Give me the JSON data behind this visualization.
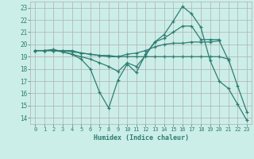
{
  "xlabel": "Humidex (Indice chaleur)",
  "background_color": "#cceee8",
  "grid_color": "#b0b0b0",
  "line_color": "#2e7d72",
  "xlim": [
    -0.5,
    23.5
  ],
  "ylim": [
    13.5,
    23.5
  ],
  "xticks": [
    0,
    1,
    2,
    3,
    4,
    5,
    6,
    7,
    8,
    9,
    10,
    11,
    12,
    13,
    14,
    15,
    16,
    17,
    18,
    19,
    20,
    21,
    22,
    23
  ],
  "yticks": [
    14,
    15,
    16,
    17,
    18,
    19,
    20,
    21,
    22,
    23
  ],
  "lines": [
    {
      "x": [
        0,
        1,
        2,
        3,
        4,
        5,
        6,
        7,
        8,
        9,
        10,
        11,
        12,
        13,
        14,
        15,
        16,
        17,
        18,
        19,
        20
      ],
      "y": [
        19.5,
        19.5,
        19.6,
        19.4,
        19.2,
        18.8,
        18.0,
        16.1,
        14.8,
        17.1,
        18.4,
        17.7,
        19.2,
        20.2,
        20.5,
        21.0,
        21.5,
        21.5,
        20.4,
        20.4,
        20.4
      ]
    },
    {
      "x": [
        0,
        1,
        2,
        3,
        4,
        5,
        6,
        7,
        8,
        9,
        10,
        11,
        12,
        13,
        14,
        15,
        16,
        17,
        18,
        19,
        20,
        21,
        22,
        23
      ],
      "y": [
        19.5,
        19.5,
        19.5,
        19.5,
        19.4,
        19.3,
        19.2,
        19.1,
        19.1,
        19.0,
        19.0,
        19.0,
        19.0,
        19.0,
        19.0,
        19.0,
        19.0,
        19.0,
        19.0,
        19.0,
        19.0,
        18.8,
        16.6,
        14.5
      ]
    },
    {
      "x": [
        0,
        1,
        2,
        3,
        4,
        5,
        6,
        7,
        8,
        9,
        10,
        11,
        12,
        13,
        14,
        15,
        16,
        17,
        18,
        19,
        20,
        21,
        22,
        23
      ],
      "y": [
        19.5,
        19.5,
        19.5,
        19.4,
        19.2,
        19.0,
        18.8,
        18.5,
        18.2,
        17.8,
        18.5,
        18.2,
        19.1,
        20.2,
        20.8,
        21.9,
        23.1,
        22.5,
        21.4,
        18.7,
        17.0,
        16.4,
        15.1,
        13.8
      ]
    },
    {
      "x": [
        0,
        1,
        2,
        3,
        4,
        5,
        6,
        7,
        8,
        9,
        10,
        11,
        12,
        13,
        14,
        15,
        16,
        17,
        18,
        19,
        20,
        21
      ],
      "y": [
        19.5,
        19.5,
        19.5,
        19.5,
        19.5,
        19.3,
        19.2,
        19.1,
        19.0,
        19.0,
        19.2,
        19.3,
        19.5,
        19.8,
        20.0,
        20.1,
        20.1,
        20.2,
        20.2,
        20.2,
        20.3,
        18.7
      ]
    }
  ]
}
